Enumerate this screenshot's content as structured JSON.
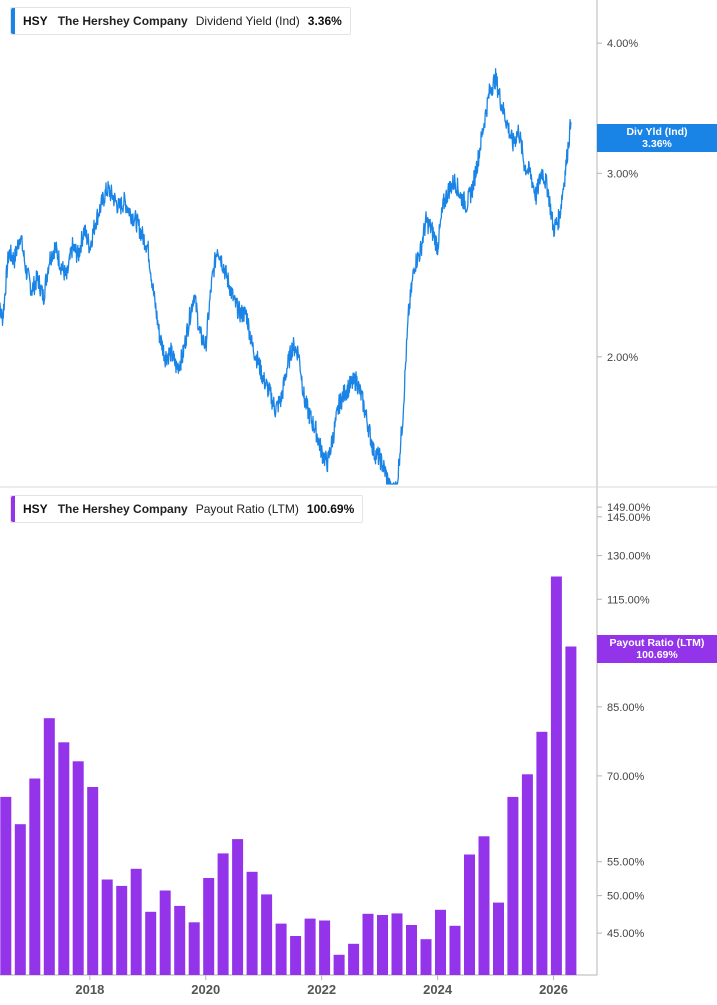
{
  "colors": {
    "yield": "#1a84e6",
    "payout": "#9333ea",
    "axis": "#b5b5b5"
  },
  "legend_top": {
    "ticker": "HSY",
    "company": "The Hershey Company",
    "metric": "Dividend Yield (Ind)",
    "value": "3.36%"
  },
  "legend_bottom": {
    "ticker": "HSY",
    "company": "The Hershey Company",
    "metric": "Payout Ratio (LTM)",
    "value": "100.69%"
  },
  "tag_top": {
    "label": "Div Yld (Ind)",
    "value": "3.36%"
  },
  "tag_bottom": {
    "label": "Payout Ratio (LTM)",
    "value": "100.69%"
  },
  "chart_data": [
    {
      "type": "line",
      "series": [
        {
          "name": "Dividend Yield (Ind)",
          "x": [
            2016.4,
            2016.5,
            2016.6,
            2016.7,
            2016.8,
            2016.9,
            2017.0,
            2017.1,
            2017.2,
            2017.3,
            2017.4,
            2017.5,
            2017.6,
            2017.7,
            2017.8,
            2017.9,
            2018.0,
            2018.1,
            2018.2,
            2018.3,
            2018.4,
            2018.5,
            2018.6,
            2018.7,
            2018.8,
            2018.9,
            2019.0,
            2019.1,
            2019.2,
            2019.3,
            2019.4,
            2019.5,
            2019.6,
            2019.7,
            2019.8,
            2019.9,
            2020.0,
            2020.1,
            2020.2,
            2020.3,
            2020.4,
            2020.5,
            2020.6,
            2020.7,
            2020.8,
            2020.9,
            2021.0,
            2021.1,
            2021.2,
            2021.3,
            2021.4,
            2021.5,
            2021.6,
            2021.7,
            2021.8,
            2021.9,
            2022.0,
            2022.1,
            2022.2,
            2022.3,
            2022.4,
            2022.5,
            2022.6,
            2022.7,
            2022.8,
            2022.9,
            2023.0,
            2023.1,
            2023.2,
            2023.3,
            2023.4,
            2023.5,
            2023.6,
            2023.7,
            2023.8,
            2023.9,
            2024.0,
            2024.1,
            2024.2,
            2024.3,
            2024.4,
            2024.5,
            2024.6,
            2024.7,
            2024.8,
            2024.9,
            2025.0,
            2025.1,
            2025.2,
            2025.3,
            2025.4,
            2025.5,
            2025.6,
            2025.7,
            2025.8,
            2025.9,
            2026.0,
            2026.1,
            2026.2,
            2026.3
          ],
          "values": [
            2.25,
            2.18,
            2.52,
            2.48,
            2.62,
            2.42,
            2.32,
            2.38,
            2.28,
            2.48,
            2.55,
            2.45,
            2.38,
            2.55,
            2.5,
            2.65,
            2.55,
            2.7,
            2.8,
            2.9,
            2.85,
            2.78,
            2.82,
            2.75,
            2.7,
            2.62,
            2.55,
            2.3,
            2.1,
            2.0,
            2.02,
            1.95,
            2.0,
            2.15,
            2.3,
            2.1,
            2.05,
            2.35,
            2.55,
            2.45,
            2.35,
            2.25,
            2.2,
            2.2,
            2.05,
            1.98,
            1.9,
            1.85,
            1.78,
            1.82,
            1.95,
            2.05,
            2.02,
            1.82,
            1.75,
            1.7,
            1.62,
            1.58,
            1.68,
            1.8,
            1.85,
            1.88,
            1.9,
            1.82,
            1.72,
            1.62,
            1.6,
            1.55,
            1.48,
            1.5,
            1.75,
            2.2,
            2.45,
            2.52,
            2.7,
            2.65,
            2.55,
            2.8,
            2.9,
            2.95,
            2.85,
            2.8,
            2.9,
            3.1,
            3.35,
            3.6,
            3.7,
            3.5,
            3.35,
            3.2,
            3.3,
            3.05,
            3.0,
            2.85,
            3.02,
            2.9,
            2.65,
            2.72,
            3.0,
            3.36
          ]
        }
      ],
      "ylim": [
        1.5,
        4.4
      ],
      "scale": "log",
      "yticks": [
        "4.00%",
        "3.00%",
        "2.00%"
      ],
      "ytick_values": [
        4.0,
        3.0,
        2.0
      ]
    },
    {
      "type": "bar",
      "series": [
        {
          "name": "Payout Ratio (LTM)",
          "values": [
            65.98,
            61.12,
            69.49,
            82.31,
            76.93,
            72.92,
            67.84,
            52.31,
            51.38,
            53.91,
            47.77,
            50.72,
            48.58,
            46.39,
            52.53,
            56.29,
            58.61,
            53.46,
            50.17,
            46.22,
            44.64,
            46.87,
            46.62,
            42.34,
            43.67,
            47.51,
            47.35,
            47.56,
            46.03,
            44.23,
            48.05,
            45.93,
            56.12,
            59.07,
            49.02,
            65.98,
            70.31,
            79.23,
            122.59,
            100.69
          ]
        }
      ],
      "x_start": 2016.55,
      "x_step": 0.25,
      "ylim": [
        40,
        152
      ],
      "scale": "log",
      "yticks": [
        "149.00%",
        "145.00%",
        "130.00%",
        "115.00%",
        "85.00%",
        "70.00%",
        "55.00%",
        "50.00%",
        "45.00%"
      ],
      "ytick_values": [
        149,
        145,
        130,
        115,
        85,
        70,
        55,
        50,
        45
      ]
    }
  ],
  "x_axis": {
    "labels": [
      "2018",
      "2020",
      "2022",
      "2024",
      "2026"
    ],
    "values": [
      2018,
      2020,
      2022,
      2024,
      2026
    ],
    "range": [
      2016.45,
      2026.75
    ]
  }
}
